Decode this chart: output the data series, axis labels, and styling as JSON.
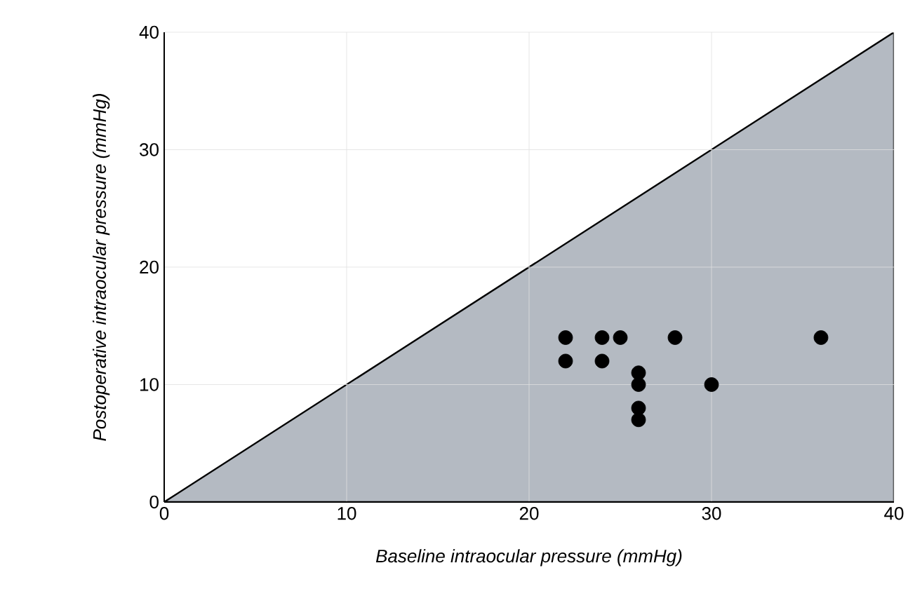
{
  "chart_data": {
    "type": "scatter",
    "xlabel": "Baseline intraocular pressure (mmHg)",
    "ylabel": "Postoperative intraocular pressure (mmHg)",
    "xlim": [
      0,
      40
    ],
    "ylim": [
      0,
      40
    ],
    "xticks": [
      0,
      10,
      20,
      30,
      40
    ],
    "yticks": [
      0,
      10,
      20,
      30,
      40
    ],
    "grid": true,
    "series": [
      {
        "type": "area",
        "color": "#b4bac2",
        "x": [
          0,
          40
        ],
        "values": [
          0,
          40
        ],
        "marker": "none"
      },
      {
        "color": "#000000",
        "x": [
          22,
          22,
          24,
          24,
          25,
          26,
          26,
          26,
          26,
          28,
          30,
          36
        ],
        "values": [
          14,
          12,
          14,
          12,
          14,
          11,
          10,
          8,
          7,
          14,
          10,
          14
        ],
        "marker": "circle"
      }
    ]
  }
}
